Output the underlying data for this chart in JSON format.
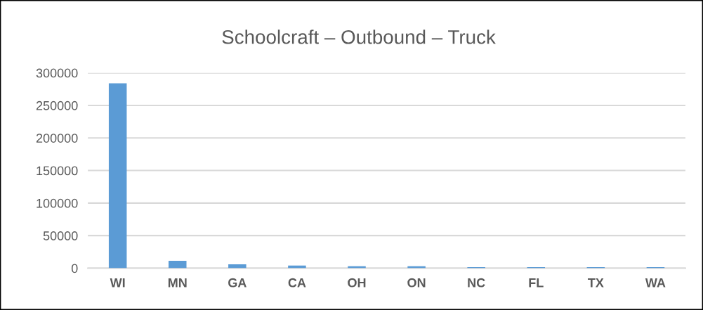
{
  "chart_data": {
    "type": "bar",
    "title": "Schoolcraft – Outbound – Truck",
    "categories": [
      "WI",
      "MN",
      "GA",
      "CA",
      "OH",
      "ON",
      "NC",
      "FL",
      "TX",
      "WA"
    ],
    "values": [
      284000,
      11300,
      5800,
      4000,
      3000,
      3000,
      1500,
      1500,
      1500,
      1500
    ],
    "color": "#5b9bd5",
    "ylim": [
      0,
      300000
    ],
    "yticks": [
      0,
      50000,
      100000,
      150000,
      200000,
      250000,
      300000
    ],
    "grid": "y"
  }
}
